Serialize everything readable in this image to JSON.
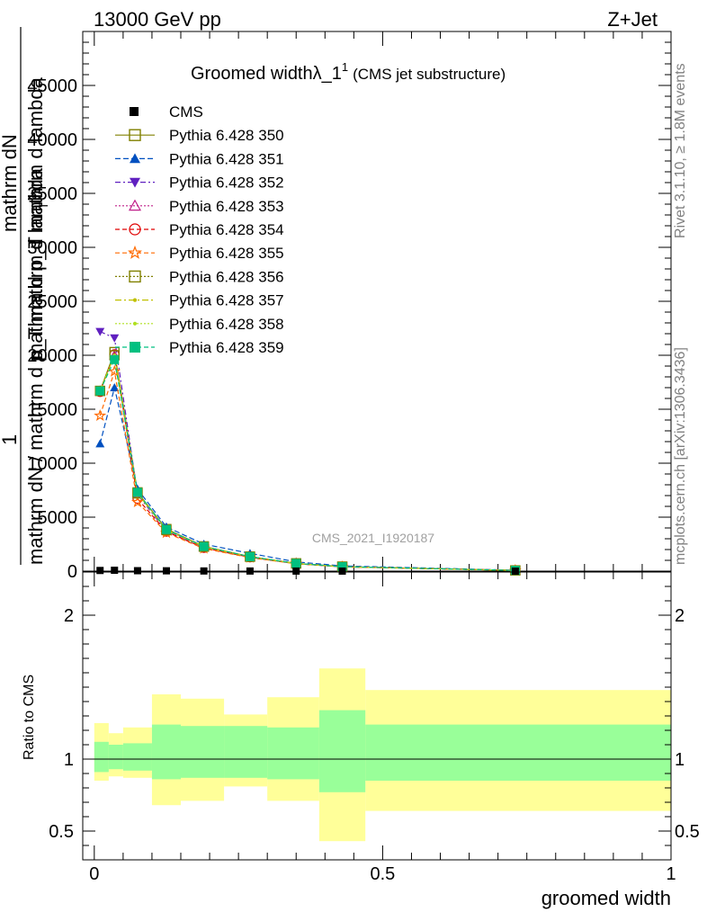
{
  "header": {
    "energy": "13000 GeV pp",
    "process": "Z+Jet"
  },
  "side": {
    "rivet": "Rivet 3.1.10, ≥ 1.8M events",
    "mcplots": "mcplots.cern.ch [arXiv:1306.3436]"
  },
  "chart_data": {
    "type": "line",
    "title": "Groomed widthλ_1",
    "title_sup": "1",
    "subtitle": "(CMS jet substructure)",
    "watermark": "CMS_2021_I1920187",
    "xlabel": "groomed width",
    "ylabel_main_1": "mathrm dN / mathrm d p_T mathrm d lambda",
    "ylabel_main_frac": "1",
    "ylabel_main_2": "mathrm dN",
    "ylabel_main_3": "mathrm d p_T mathrm d lambda",
    "ylabel_main_sub": "T",
    "ylabel_ratio": "Ratio to CMS",
    "xlim": [
      -0.02,
      1.0
    ],
    "main": {
      "ylim": [
        0,
        50000
      ],
      "yticks": [
        0,
        5000,
        10000,
        15000,
        20000,
        25000,
        30000,
        35000,
        40000,
        45000
      ],
      "ytick_labels": [
        "0",
        "5000",
        "10000",
        "15000",
        "20000",
        "25000",
        "30000",
        "35000",
        "40000",
        "45000"
      ]
    },
    "ratio": {
      "ylim": [
        0.3,
        2.3
      ],
      "yticks": [
        0.5,
        1,
        2
      ],
      "ytick_labels": [
        "0.5",
        "1",
        "2"
      ],
      "xticks": [
        0,
        0.5,
        1
      ],
      "xtick_labels": [
        "0",
        "0.5",
        "1"
      ]
    },
    "x": [
      0.01,
      0.035,
      0.075,
      0.125,
      0.19,
      0.27,
      0.35,
      0.43,
      0.73
    ],
    "bin_edges": [
      0.0,
      0.025,
      0.05,
      0.1,
      0.15,
      0.225,
      0.3,
      0.39,
      0.47,
      1.0
    ],
    "data": {
      "name": "CMS",
      "values": [
        60,
        80,
        40,
        30,
        15,
        10,
        5,
        3,
        1
      ]
    },
    "series": [
      {
        "name": "Pythia 6.428 350",
        "values": [
          16700,
          20300,
          7300,
          3900,
          2300,
          1350,
          720,
          420,
          70
        ],
        "color": "#808000",
        "dash": "",
        "marker": "square-open"
      },
      {
        "name": "Pythia 6.428 351",
        "values": [
          11800,
          17000,
          7600,
          4100,
          2500,
          1650,
          860,
          480,
          80
        ],
        "color": "#0050c0",
        "dash": "6,3",
        "marker": "triangle-up"
      },
      {
        "name": "Pythia 6.428 352",
        "values": [
          22200,
          21600,
          7100,
          3700,
          2200,
          1300,
          700,
          400,
          65
        ],
        "color": "#6020c0",
        "dash": "6,3,2,3",
        "marker": "triangle-down"
      },
      {
        "name": "Pythia 6.428 353",
        "values": [
          16700,
          20000,
          7200,
          3800,
          2250,
          1330,
          700,
          410,
          68
        ],
        "color": "#c0208a",
        "dash": "2,2",
        "marker": "triangle-open"
      },
      {
        "name": "Pythia 6.428 354",
        "values": [
          16600,
          20100,
          6700,
          3650,
          2150,
          1280,
          690,
          400,
          66
        ],
        "color": "#e00000",
        "dash": "5,3",
        "marker": "circle-open"
      },
      {
        "name": "Pythia 6.428 355",
        "values": [
          14400,
          18500,
          6400,
          3550,
          2100,
          1250,
          680,
          390,
          65
        ],
        "color": "#ff6a00",
        "dash": "5,3",
        "marker": "star"
      },
      {
        "name": "Pythia 6.428 356",
        "values": [
          16700,
          20000,
          7200,
          3800,
          2260,
          1330,
          710,
          410,
          68
        ],
        "color": "#808000",
        "dash": "2,2",
        "marker": "square-open"
      },
      {
        "name": "Pythia 6.428 357",
        "values": [
          16700,
          20000,
          7200,
          3800,
          2260,
          1330,
          710,
          410,
          68
        ],
        "color": "#c0c000",
        "dash": "7,3,2,3",
        "marker": "dot"
      },
      {
        "name": "Pythia 6.428 358",
        "values": [
          16700,
          20000,
          7200,
          3800,
          2260,
          1330,
          710,
          410,
          68
        ],
        "color": "#b0e020",
        "dash": "2,2",
        "marker": "dot"
      },
      {
        "name": "Pythia 6.428 359",
        "values": [
          16700,
          19600,
          7300,
          3850,
          2280,
          1340,
          715,
          415,
          69
        ],
        "color": "#00c080",
        "dash": "5,3",
        "marker": "square"
      }
    ],
    "ratio_bands": {
      "stat_color": "#99ff99",
      "total_color": "#ffff99",
      "stat_lo": [
        0.91,
        0.93,
        0.92,
        0.86,
        0.87,
        0.87,
        0.86,
        0.77,
        0.85
      ],
      "stat_hi": [
        1.12,
        1.1,
        1.11,
        1.24,
        1.23,
        1.23,
        1.22,
        1.34,
        1.24
      ],
      "total_lo": [
        0.85,
        0.88,
        0.87,
        0.68,
        0.71,
        0.81,
        0.71,
        0.43,
        0.64
      ],
      "total_hi": [
        1.25,
        1.18,
        1.22,
        1.45,
        1.42,
        1.31,
        1.43,
        1.63,
        1.48
      ]
    },
    "grid": false,
    "legend_position": "top-left"
  }
}
